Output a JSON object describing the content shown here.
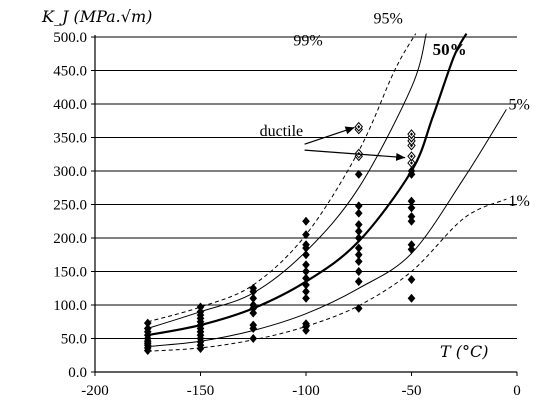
{
  "chart_data": {
    "type": "scatter",
    "ylabel": "K_J (MPa.√m)",
    "xlabel": "T (°C)",
    "xlim": [
      -200,
      0
    ],
    "ylim": [
      0,
      500
    ],
    "x_ticks": [
      -200,
      -150,
      -100,
      -50,
      0
    ],
    "y_ticks": [
      0,
      50,
      100,
      150,
      200,
      250,
      300,
      350,
      400,
      450,
      500
    ],
    "x_tick_labels": [
      "-200",
      "-150",
      "-100",
      "-50",
      "0"
    ],
    "y_tick_labels": [
      "0.0",
      "50.0",
      "100.0",
      "150.0",
      "200.0",
      "250.0",
      "300.0",
      "350.0",
      "400.0",
      "450.0",
      "500.0"
    ],
    "grid": "horizontal",
    "curves": [
      {
        "name": "1%",
        "style": "dashed",
        "width": 1,
        "label_at": [
          -4,
          248
        ],
        "points": [
          [
            -175,
            31
          ],
          [
            -150,
            36
          ],
          [
            -125,
            48
          ],
          [
            -100,
            68
          ],
          [
            -75,
            99
          ],
          [
            -50,
            150
          ],
          [
            -25,
            230
          ],
          [
            -5,
            258
          ]
        ]
      },
      {
        "name": "5%",
        "style": "solid",
        "width": 1,
        "label_at": [
          -4,
          392
        ],
        "points": [
          [
            -175,
            38
          ],
          [
            -150,
            46
          ],
          [
            -125,
            62
          ],
          [
            -100,
            87
          ],
          [
            -75,
            125
          ],
          [
            -50,
            177
          ],
          [
            -25,
            290
          ],
          [
            -5,
            392
          ]
        ]
      },
      {
        "name": "50%",
        "style": "solid",
        "width": 2.2,
        "label_at": [
          -40,
          473
        ],
        "points": [
          [
            -175,
            55
          ],
          [
            -150,
            70
          ],
          [
            -125,
            95
          ],
          [
            -100,
            135
          ],
          [
            -75,
            195
          ],
          [
            -50,
            300
          ],
          [
            -40,
            380
          ],
          [
            -30,
            470
          ],
          [
            -24,
            505
          ]
        ]
      },
      {
        "name": "95%",
        "style": "solid",
        "width": 1,
        "label_at": [
          -68,
          520
        ],
        "points": [
          [
            -175,
            65
          ],
          [
            -150,
            90
          ],
          [
            -125,
            118
          ],
          [
            -100,
            180
          ],
          [
            -75,
            275
          ],
          [
            -50,
            425
          ],
          [
            -43,
            505
          ]
        ]
      },
      {
        "name": "99%",
        "style": "dashed",
        "width": 1,
        "label_at": [
          -106,
          487
        ],
        "points": [
          [
            -175,
            75
          ],
          [
            -150,
            97
          ],
          [
            -125,
            130
          ],
          [
            -100,
            205
          ],
          [
            -75,
            330
          ],
          [
            -58,
            450
          ],
          [
            -48,
            505
          ]
        ]
      }
    ],
    "series": [
      {
        "name": "",
        "marker": "filled-diamond",
        "points": [
          [
            -175,
            32
          ],
          [
            -175,
            36
          ],
          [
            -175,
            40
          ],
          [
            -175,
            43
          ],
          [
            -175,
            46
          ],
          [
            -175,
            50
          ],
          [
            -175,
            55
          ],
          [
            -175,
            60
          ],
          [
            -175,
            65
          ],
          [
            -175,
            73
          ],
          [
            -150,
            35
          ],
          [
            -150,
            40
          ],
          [
            -150,
            45
          ],
          [
            -150,
            50
          ],
          [
            -150,
            55
          ],
          [
            -150,
            60
          ],
          [
            -150,
            65
          ],
          [
            -150,
            70
          ],
          [
            -150,
            75
          ],
          [
            -150,
            80
          ],
          [
            -150,
            85
          ],
          [
            -150,
            90
          ],
          [
            -150,
            97
          ],
          [
            -125,
            50
          ],
          [
            -125,
            65
          ],
          [
            -125,
            70
          ],
          [
            -125,
            88
          ],
          [
            -125,
            95
          ],
          [
            -125,
            100
          ],
          [
            -125,
            110
          ],
          [
            -125,
            120
          ],
          [
            -125,
            125
          ],
          [
            -100,
            62
          ],
          [
            -100,
            68
          ],
          [
            -100,
            72
          ],
          [
            -100,
            110
          ],
          [
            -100,
            120
          ],
          [
            -100,
            130
          ],
          [
            -100,
            140
          ],
          [
            -100,
            150
          ],
          [
            -100,
            160
          ],
          [
            -100,
            175
          ],
          [
            -100,
            185
          ],
          [
            -100,
            190
          ],
          [
            -100,
            205
          ],
          [
            -100,
            225
          ],
          [
            -75,
            95
          ],
          [
            -75,
            135
          ],
          [
            -75,
            150
          ],
          [
            -75,
            165
          ],
          [
            -75,
            175
          ],
          [
            -75,
            185
          ],
          [
            -75,
            200
          ],
          [
            -75,
            210
          ],
          [
            -75,
            220
          ],
          [
            -75,
            237
          ],
          [
            -75,
            248
          ],
          [
            -75,
            295
          ],
          [
            -50,
            110
          ],
          [
            -50,
            138
          ],
          [
            -50,
            183
          ],
          [
            -50,
            190
          ],
          [
            -50,
            225
          ],
          [
            -50,
            232
          ],
          [
            -50,
            245
          ],
          [
            -50,
            255
          ],
          [
            -50,
            295
          ],
          [
            -50,
            300
          ]
        ]
      },
      {
        "name": "ductile",
        "marker": "open-diamond",
        "points": [
          [
            -75,
            322
          ],
          [
            -75,
            326
          ],
          [
            -75,
            362
          ],
          [
            -75,
            366
          ],
          [
            -50,
            312
          ],
          [
            -50,
            322
          ],
          [
            -50,
            338
          ],
          [
            -50,
            345
          ],
          [
            -50,
            350
          ],
          [
            -50,
            355
          ]
        ]
      }
    ],
    "annotations": [
      {
        "text": "ductile",
        "at": [
          -122,
          352
        ],
        "arrows_to": [
          [
            -77,
            365
          ],
          [
            -53,
            320
          ]
        ]
      }
    ]
  }
}
